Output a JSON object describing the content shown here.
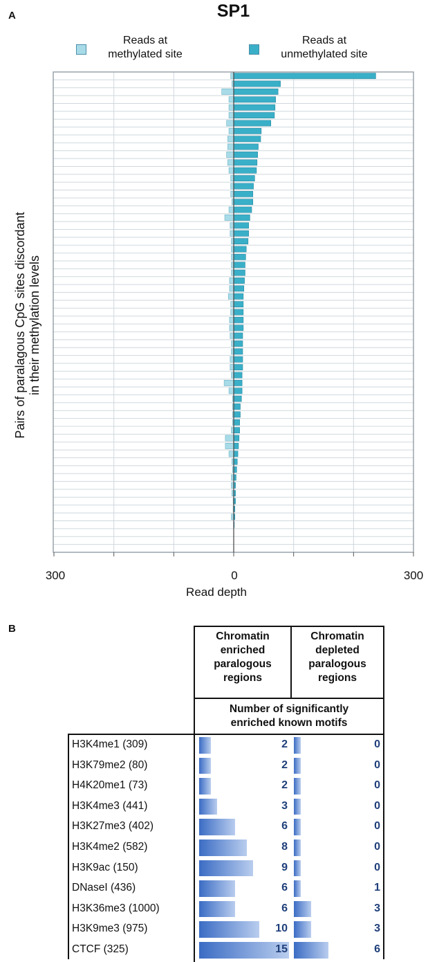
{
  "panel_a": {
    "letter": "A",
    "title": "SP1",
    "legend": [
      {
        "label_line1": "Reads at",
        "label_line2": "methylated site",
        "color": "#a8dbe8"
      },
      {
        "label_line1": "Reads at",
        "label_line2": "unmethylated site",
        "color": "#3aafc8"
      }
    ],
    "ylabel_line1": "Pairs of paralagous CpG sites discordant",
    "ylabel_line2": "in their methylation levels",
    "xlabel": "Read depth",
    "xticks": [
      "300",
      "0",
      "300"
    ]
  },
  "chart_data": {
    "type": "bar",
    "orientation": "horizontal",
    "title": "SP1",
    "xlabel": "Read depth",
    "ylabel": "Pairs of paralagous CpG sites discordant in their methylation levels",
    "xlim": [
      -300,
      300
    ],
    "series": [
      {
        "name": "Reads at methylated site",
        "color": "#a8dbe8",
        "values": [
          -5,
          -3,
          -20,
          -8,
          -8,
          -8,
          -12,
          -8,
          -10,
          -10,
          -12,
          -10,
          -8,
          -5,
          -5,
          -5,
          -3,
          -8,
          -15,
          -6,
          -6,
          -4,
          -4,
          -4,
          -4,
          -4,
          -7,
          -7,
          -9,
          -5,
          -5,
          -7,
          -7,
          -6,
          -4,
          -4,
          -6,
          -6,
          -4,
          -16,
          -8,
          -2,
          -2,
          -2,
          -2,
          -4,
          -14,
          -14,
          -8,
          -3,
          -2,
          -4,
          -4,
          -3,
          -1,
          -1,
          -4,
          0
        ]
      },
      {
        "name": "Reads at unmethylated site",
        "color": "#3aafc8",
        "values": [
          237,
          78,
          74,
          70,
          69,
          68,
          62,
          46,
          45,
          41,
          40,
          39,
          38,
          35,
          33,
          32,
          32,
          30,
          27,
          25,
          25,
          24,
          21,
          20,
          19,
          19,
          18,
          17,
          16,
          16,
          16,
          16,
          16,
          15,
          15,
          15,
          15,
          15,
          14,
          14,
          14,
          13,
          11,
          11,
          10,
          10,
          9,
          8,
          7,
          6,
          5,
          4,
          3,
          3,
          3,
          2,
          2,
          1
        ]
      }
    ]
  },
  "panel_b": {
    "letter": "B",
    "col1_header": [
      "Chromatin",
      "enriched",
      "paralogous",
      "regions"
    ],
    "col2_header": [
      "Chromatin",
      "depleted",
      "paralogous",
      "regions"
    ],
    "subheader": [
      "Number of significantly",
      "enriched known motifs"
    ],
    "rows": [
      {
        "label": "H3K4me1 (309)",
        "enriched": 2,
        "depleted": 0
      },
      {
        "label": "H3K79me2 (80)",
        "enriched": 2,
        "depleted": 0
      },
      {
        "label": "H4K20me1 (73)",
        "enriched": 2,
        "depleted": 0
      },
      {
        "label": "H3K4me3 (441)",
        "enriched": 3,
        "depleted": 0
      },
      {
        "label": "H3K27me3 (402)",
        "enriched": 6,
        "depleted": 0
      },
      {
        "label": "H3K4me2 (582)",
        "enriched": 8,
        "depleted": 0
      },
      {
        "label": "H3K9ac (150)",
        "enriched": 9,
        "depleted": 0
      },
      {
        "label": "DNaseI (436)",
        "enriched": 6,
        "depleted": 1
      },
      {
        "label": "H3K36me3 (1000)",
        "enriched": 6,
        "depleted": 3
      },
      {
        "label": "H3K9me3 (975)",
        "enriched": 10,
        "depleted": 3
      },
      {
        "label": "CTCF (325)",
        "enriched": 15,
        "depleted": 6
      }
    ]
  }
}
